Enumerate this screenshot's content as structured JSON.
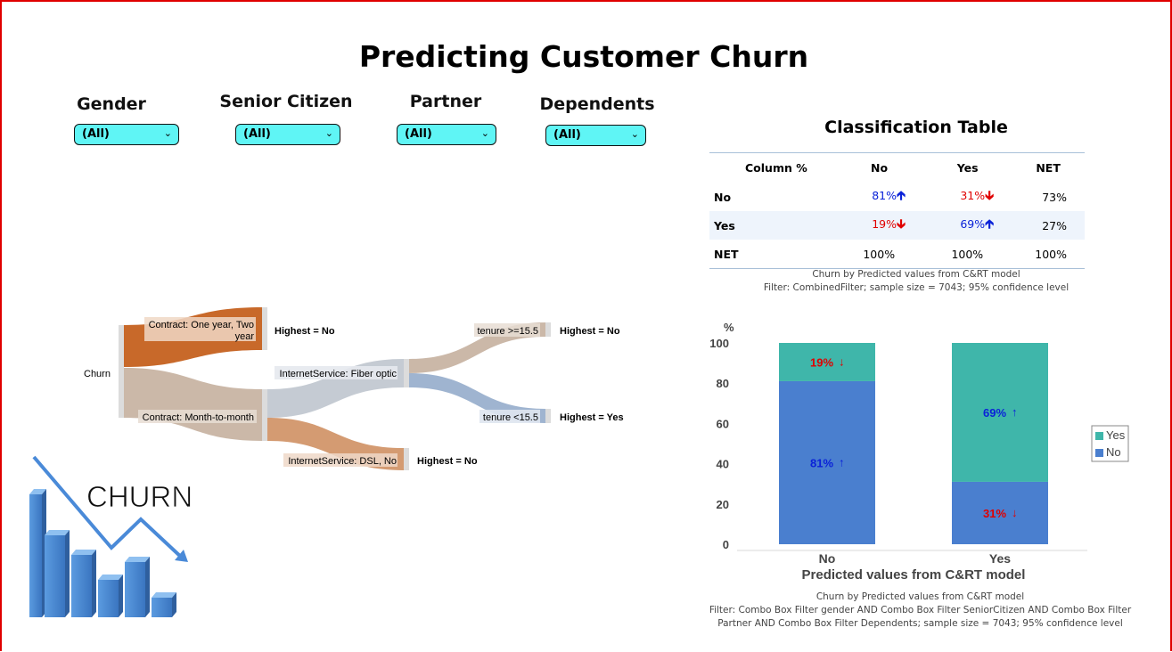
{
  "title": "Predicting Customer Churn",
  "filters": [
    {
      "label": "Gender",
      "value": "(All)"
    },
    {
      "label": "Senior Citizen",
      "value": "(All)"
    },
    {
      "label": "Partner",
      "value": "(All)"
    },
    {
      "label": "Dependents",
      "value": "(All)"
    }
  ],
  "classification_table": {
    "title": "Classification Table",
    "headers": [
      "Column %",
      "No",
      "Yes",
      "NET"
    ],
    "rows": [
      {
        "label": "No",
        "no": "81%",
        "yes": "31%",
        "net": "73%"
      },
      {
        "label": "Yes",
        "no": "19%",
        "yes": "69%",
        "net": "27%"
      },
      {
        "label": "NET",
        "no": "100%",
        "yes": "100%",
        "net": "100%"
      }
    ],
    "caption_line1": "Churn by Predicted values from C&RT model",
    "caption_line2": "Filter: CombinedFilter; sample size = 7043; 95% confidence level"
  },
  "sankey": {
    "root": "Churn",
    "contract_one_two_line1": "Contract: One year, Two",
    "contract_one_two_line2": "year",
    "highest_no_1": "Highest = No",
    "contract_mtm": "Contract: Month-to-month",
    "fiber": "InternetService: Fiber optic",
    "dsl": "InternetService: DSL, No",
    "highest_no_2": "Highest = No",
    "tenure_hi": "tenure >=15.5",
    "highest_no_3": "Highest = No",
    "tenure_lo": "tenure <15.5",
    "highest_yes": "Highest = Yes",
    "colors": {
      "orange": "#c8692a",
      "tan": "#cbb8a8",
      "grey": "#c5cbd3",
      "lightorange": "#d49b72",
      "blue": "#9fb4d0",
      "node": "#dcdcdc"
    }
  },
  "logo": {
    "text": "CHURN"
  },
  "chart_data": {
    "type": "bar",
    "stacked": true,
    "categories": [
      "No",
      "Yes"
    ],
    "series": [
      {
        "name": "No",
        "values": [
          81,
          31
        ],
        "labels": [
          "81%",
          "31%"
        ],
        "color": "#4a7fcf"
      },
      {
        "name": "Yes",
        "values": [
          19,
          69
        ],
        "labels": [
          "19%",
          "69%"
        ],
        "color": "#3fb6aa"
      }
    ],
    "ylim": [
      0,
      100
    ],
    "yticks": [
      "0",
      "20",
      "40",
      "60",
      "80",
      "100"
    ],
    "ylabel": "%",
    "xlabel": "Predicted values from C&RT model",
    "legend": [
      "Yes",
      "No"
    ],
    "legend_placement": "right",
    "caption_line1": "Churn by Predicted values from C&RT model",
    "caption_line2": "Filter: Combo Box Filter gender AND Combo Box Filter SeniorCitizen AND Combo Box Filter",
    "caption_line3": "Partner  AND Combo Box Filter Dependents; sample size = 7043; 95% confidence level"
  }
}
